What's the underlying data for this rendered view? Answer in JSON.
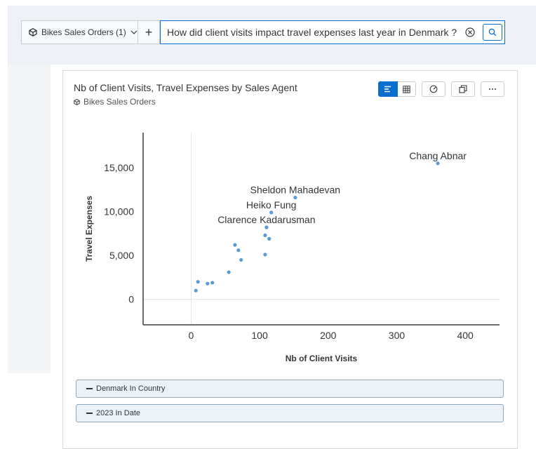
{
  "query_bar": {
    "datasource_label": "Bikes Sales Orders (1)",
    "add_label": "+",
    "query_text": "How did client visits impact travel expenses last year in Denmark ?"
  },
  "card": {
    "title": "Nb of Client Visits, Travel Expenses by Sales Agent",
    "datasource": "Bikes Sales Orders",
    "toolbar_icons": [
      "bar-chart-icon",
      "table-icon",
      "chart-type-icon",
      "copy-icon",
      "more-icon"
    ]
  },
  "filters": [
    {
      "label": "Denmark In Country"
    },
    {
      "label": "2023 In Date"
    }
  ],
  "colors": {
    "accent": "#0a6ed1",
    "point": "#5b9bd5"
  },
  "chart_data": {
    "type": "scatter",
    "xlabel": "Nb of Client Visits",
    "ylabel": "Travel Expenses",
    "xlim": [
      -70,
      450
    ],
    "ylim": [
      -2900,
      19000
    ],
    "xticks": [
      "0",
      "100",
      "200",
      "300",
      "400"
    ],
    "yticks": [
      "0",
      "5,000",
      "10,000",
      "15,000"
    ],
    "xtick_values": [
      0,
      100,
      200,
      300,
      400
    ],
    "ytick_values": [
      0,
      5000,
      10000,
      15000
    ],
    "points": [
      {
        "x": 360,
        "y": 15500,
        "label": "Chang Abnar"
      },
      {
        "x": 152,
        "y": 11600,
        "label": "Sheldon Mahadevan"
      },
      {
        "x": 117,
        "y": 9900,
        "label": "Heiko Fung"
      },
      {
        "x": 110,
        "y": 8200,
        "label": "Clarence Kadarusman"
      },
      {
        "x": 108,
        "y": 7300,
        "label": ""
      },
      {
        "x": 114,
        "y": 6900,
        "label": ""
      },
      {
        "x": 64,
        "y": 6200,
        "label": ""
      },
      {
        "x": 69,
        "y": 5600,
        "label": ""
      },
      {
        "x": 108,
        "y": 5100,
        "label": ""
      },
      {
        "x": 73,
        "y": 4500,
        "label": ""
      },
      {
        "x": 55,
        "y": 3100,
        "label": ""
      },
      {
        "x": 10,
        "y": 2000,
        "label": ""
      },
      {
        "x": 31,
        "y": 1900,
        "label": ""
      },
      {
        "x": 24,
        "y": 1800,
        "label": ""
      },
      {
        "x": 7,
        "y": 1000,
        "label": ""
      }
    ]
  }
}
